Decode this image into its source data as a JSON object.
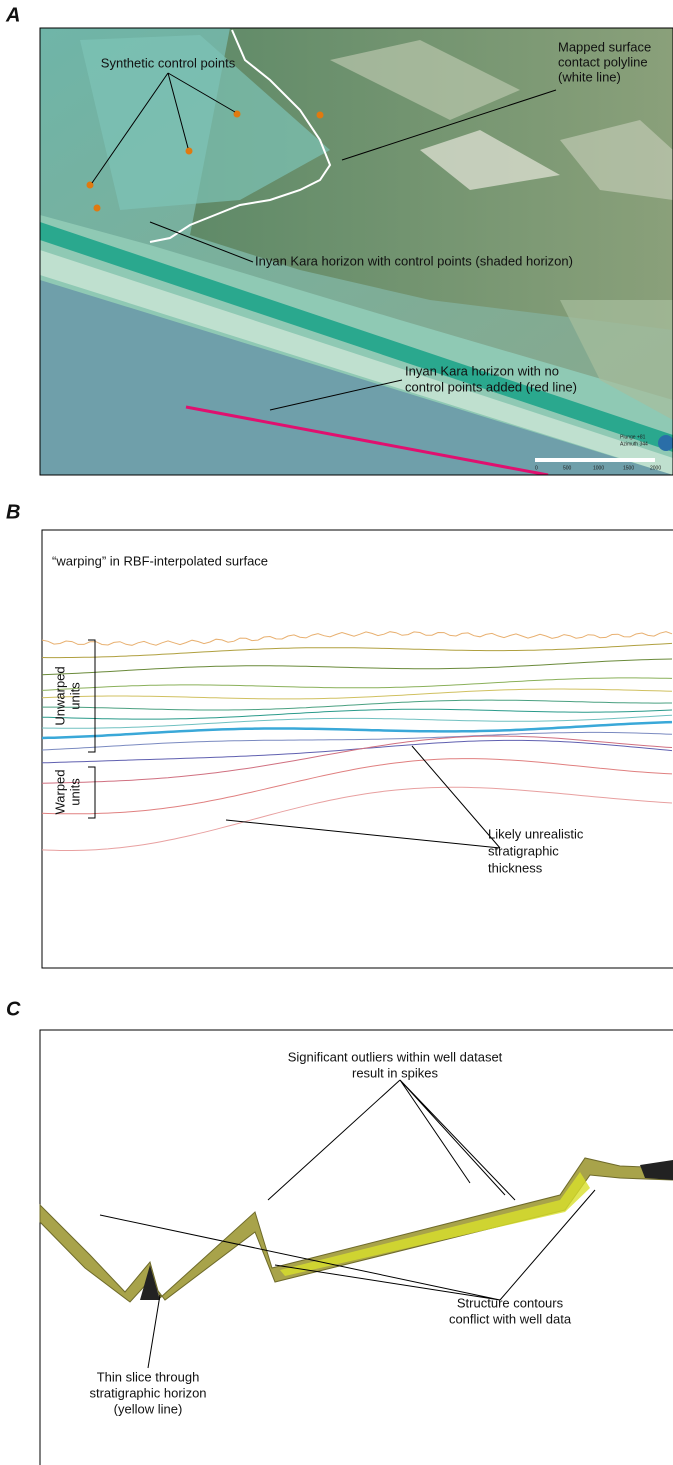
{
  "panels": [
    {
      "label": "A",
      "annotations": [
        "Synthetic control points",
        "Mapped surface",
        "contact polyline",
        "(white line)",
        "Inyan Kara horizon with control points (shaded horizon)",
        "Inyan Kara horizon with no",
        "control points added (red line)"
      ],
      "scale_bar": [
        "Plunge +81",
        "Azimuth 344",
        "0",
        "500",
        "1000",
        "1500",
        "2000"
      ]
    },
    {
      "label": "B",
      "title": "“warping” in RBF-interpolated surface",
      "brackets": [
        "Unwarped",
        "units",
        "Warped",
        "units"
      ],
      "annotations": [
        "Likely unrealistic",
        "stratigraphic",
        "thickness"
      ]
    },
    {
      "label": "C",
      "annotations": [
        "Significant outliers within well dataset",
        "result in spikes",
        "Structure contours",
        "conflict with well data",
        "Thin slice through",
        "stratigraphic horizon",
        "(yellow line)"
      ]
    }
  ]
}
